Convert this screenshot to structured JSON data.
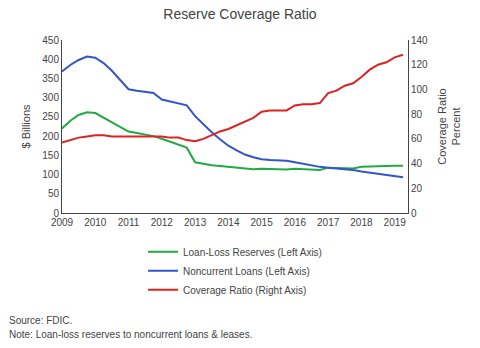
{
  "chart_data": {
    "type": "line",
    "title": "Reserve Coverage Ratio",
    "ylabel": "$ Billions",
    "y2label": [
      "Coverage Ratio",
      "Percent"
    ],
    "annotations": [
      "Source: FDIC.",
      "Note: Loan-loss reserves to noncurrent loans & leases."
    ],
    "x": [
      2009.0,
      2009.25,
      2009.5,
      2009.75,
      2010.0,
      2010.25,
      2010.5,
      2010.75,
      2011.0,
      2011.25,
      2011.5,
      2011.75,
      2012.0,
      2012.25,
      2012.5,
      2012.75,
      2013.0,
      2013.25,
      2013.5,
      2013.75,
      2014.0,
      2014.25,
      2014.5,
      2014.75,
      2015.0,
      2015.25,
      2015.5,
      2015.75,
      2016.0,
      2016.25,
      2016.5,
      2016.75,
      2017.0,
      2017.25,
      2017.5,
      2017.75,
      2018.0,
      2018.25,
      2018.5,
      2018.75,
      2019.0,
      2019.25
    ],
    "xlim": [
      2009,
      2019.4
    ],
    "xticks": [
      2009,
      2010,
      2011,
      2012,
      2013,
      2014,
      2015,
      2016,
      2017,
      2018,
      2019
    ],
    "ylim": [
      0,
      450
    ],
    "yticks": [
      0,
      50,
      100,
      150,
      200,
      250,
      300,
      350,
      400,
      450
    ],
    "y2lim": [
      0,
      140
    ],
    "y2ticks": [
      0,
      20,
      40,
      60,
      80,
      100,
      120,
      140
    ],
    "grid": false,
    "legend": "bottom",
    "series": [
      {
        "name": "Loan-Loss Reserves (Left Axis)",
        "color": "#22aa44",
        "axis": "y",
        "values": [
          220,
          240,
          255,
          262,
          260,
          248,
          235,
          222,
          212,
          208,
          204,
          200,
          193,
          185,
          178,
          170,
          132,
          128,
          124,
          122,
          120,
          118,
          116,
          114,
          115,
          114,
          113,
          113,
          115,
          114,
          113,
          112,
          118,
          117,
          116,
          116,
          120,
          121,
          122,
          122,
          123,
          123
        ]
      },
      {
        "name": "Noncurrent Loans (Left Axis)",
        "color": "#3355cc",
        "axis": "y",
        "values": [
          368,
          385,
          398,
          407,
          404,
          390,
          370,
          345,
          322,
          318,
          314,
          312,
          295,
          290,
          285,
          280,
          252,
          230,
          210,
          192,
          175,
          163,
          152,
          145,
          140,
          138,
          137,
          136,
          132,
          128,
          124,
          120,
          118,
          116,
          114,
          112,
          108,
          105,
          102,
          98,
          95,
          93
        ]
      },
      {
        "name": "Coverage Ratio (Right Axis)",
        "color": "#dd2222",
        "axis": "y2",
        "values": [
          57,
          59,
          61,
          62,
          63,
          63,
          62,
          62,
          62,
          62,
          62,
          62,
          62,
          61,
          61,
          59,
          58,
          60,
          63,
          66,
          68,
          71,
          74,
          77,
          82,
          83,
          83,
          83,
          87,
          88,
          88,
          89,
          97,
          99,
          103,
          105,
          110,
          116,
          120,
          122,
          126,
          128
        ]
      }
    ]
  }
}
